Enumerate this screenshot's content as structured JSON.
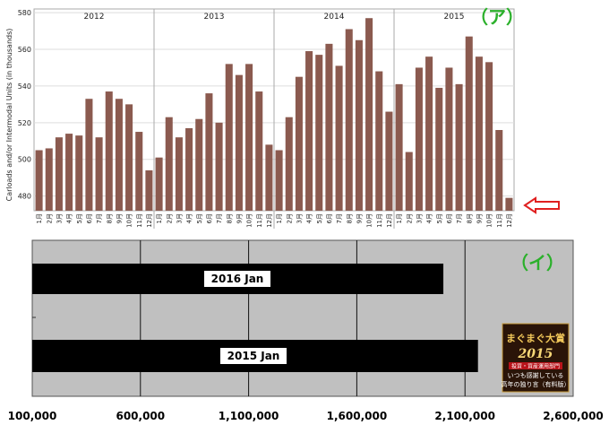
{
  "chart_data": [
    {
      "type": "bar",
      "ylabel": "Carloads and/or Intermodal Units (in thousands)",
      "ylim": [
        472,
        582
      ],
      "yticks": [
        480,
        500,
        520,
        540,
        560,
        580
      ],
      "grid": true,
      "annotation_label": "（ア）",
      "year_labels": [
        "2012",
        "2013",
        "2014",
        "2015"
      ],
      "month_labels": [
        "1月",
        "2月",
        "3月",
        "4月",
        "5月",
        "6月",
        "7月",
        "8月",
        "9月",
        "10月",
        "11月",
        "12月"
      ],
      "values": [
        505,
        506,
        512,
        514,
        513,
        533,
        512,
        537,
        533,
        530,
        515,
        494,
        501,
        523,
        512,
        517,
        522,
        536,
        520,
        552,
        546,
        552,
        537,
        508,
        505,
        523,
        545,
        559,
        557,
        563,
        551,
        571,
        565,
        577,
        548,
        526,
        541,
        504,
        550,
        556,
        539,
        550,
        541,
        567,
        556,
        553,
        516,
        479
      ],
      "bar_color": "#8b5a4f",
      "arrow_color": "#e02020"
    },
    {
      "type": "bar",
      "orientation": "horizontal",
      "annotation_label": "（イ）",
      "categories": [
        "2016 Jan",
        "2015 Jan"
      ],
      "values": [
        2000000,
        2160000
      ],
      "xlim": [
        100000,
        2600000
      ],
      "xticks": [
        100000,
        600000,
        1100000,
        1600000,
        2100000,
        2600000
      ],
      "xtick_labels": [
        "100,000",
        "600,000",
        "1,100,000",
        "1,600,000",
        "2,100,000",
        "2,600,000"
      ],
      "grid": true,
      "bar_color": "#000000",
      "background_color": "#c0c0c0"
    }
  ],
  "badge": {
    "line1": "まぐまぐ大賞",
    "year": "2015",
    "line2": "投資・資産運用部門",
    "line3": "いつも感謝している",
    "line4": "高年の独り言（有料版）"
  }
}
